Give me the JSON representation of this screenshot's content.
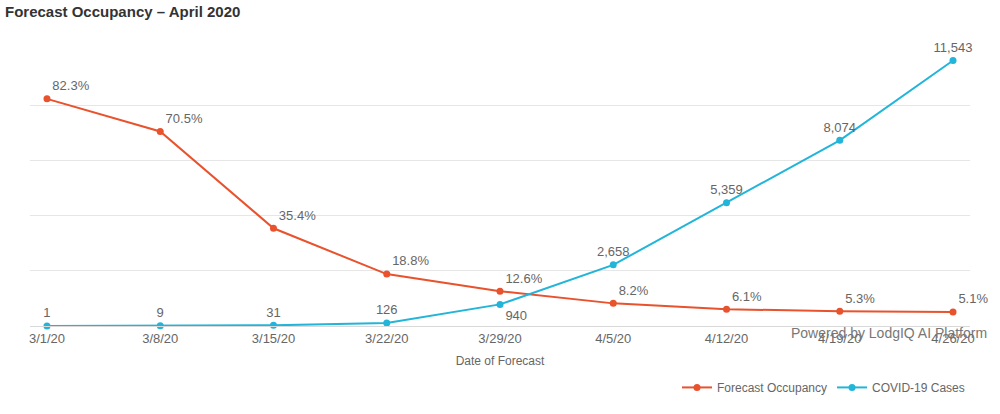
{
  "chart_data": {
    "type": "line",
    "title": "Forecast Occupancy – April 2020",
    "annotations": [
      "Powered by LodgIQ AI Platform"
    ],
    "x_label": "Date of Forecast",
    "categories": [
      "3/1/20",
      "3/8/20",
      "3/15/20",
      "3/22/20",
      "3/29/20",
      "4/5/20",
      "4/12/20",
      "4/19/20",
      "4/26/20"
    ],
    "series": [
      {
        "name": "Forecast Occupancy",
        "color": "#e8522d",
        "marker": "circle",
        "axis": "y",
        "values": [
          82.3,
          70.5,
          35.4,
          18.8,
          12.6,
          8.2,
          6.1,
          5.3,
          5.1
        ],
        "value_labels": [
          "82.3%",
          "70.5%",
          "35.4%",
          "18.8%",
          "12.6%",
          "8.2%",
          "6.1%",
          "5.3%",
          "5.1%"
        ]
      },
      {
        "name": "COVID-19 Cases",
        "color": "#22b5d9",
        "marker": "circle",
        "axis": "y2",
        "values": [
          1,
          9,
          31,
          126,
          940,
          2658,
          5359,
          8074,
          11543
        ],
        "value_labels": [
          "1",
          "9",
          "31",
          "126",
          "940",
          "2,658",
          "5,359",
          "8,074",
          "11,543"
        ]
      }
    ],
    "ylim": [
      0,
      100
    ],
    "yticks": [
      0,
      20,
      40,
      60,
      80,
      100
    ],
    "y2lim": [
      0,
      12000
    ],
    "y2ticks": [
      0,
      2400,
      4800,
      7200,
      9600,
      12000
    ],
    "grid": true,
    "data_labels": true,
    "tick_labels": "x",
    "legend": "bottom right"
  }
}
